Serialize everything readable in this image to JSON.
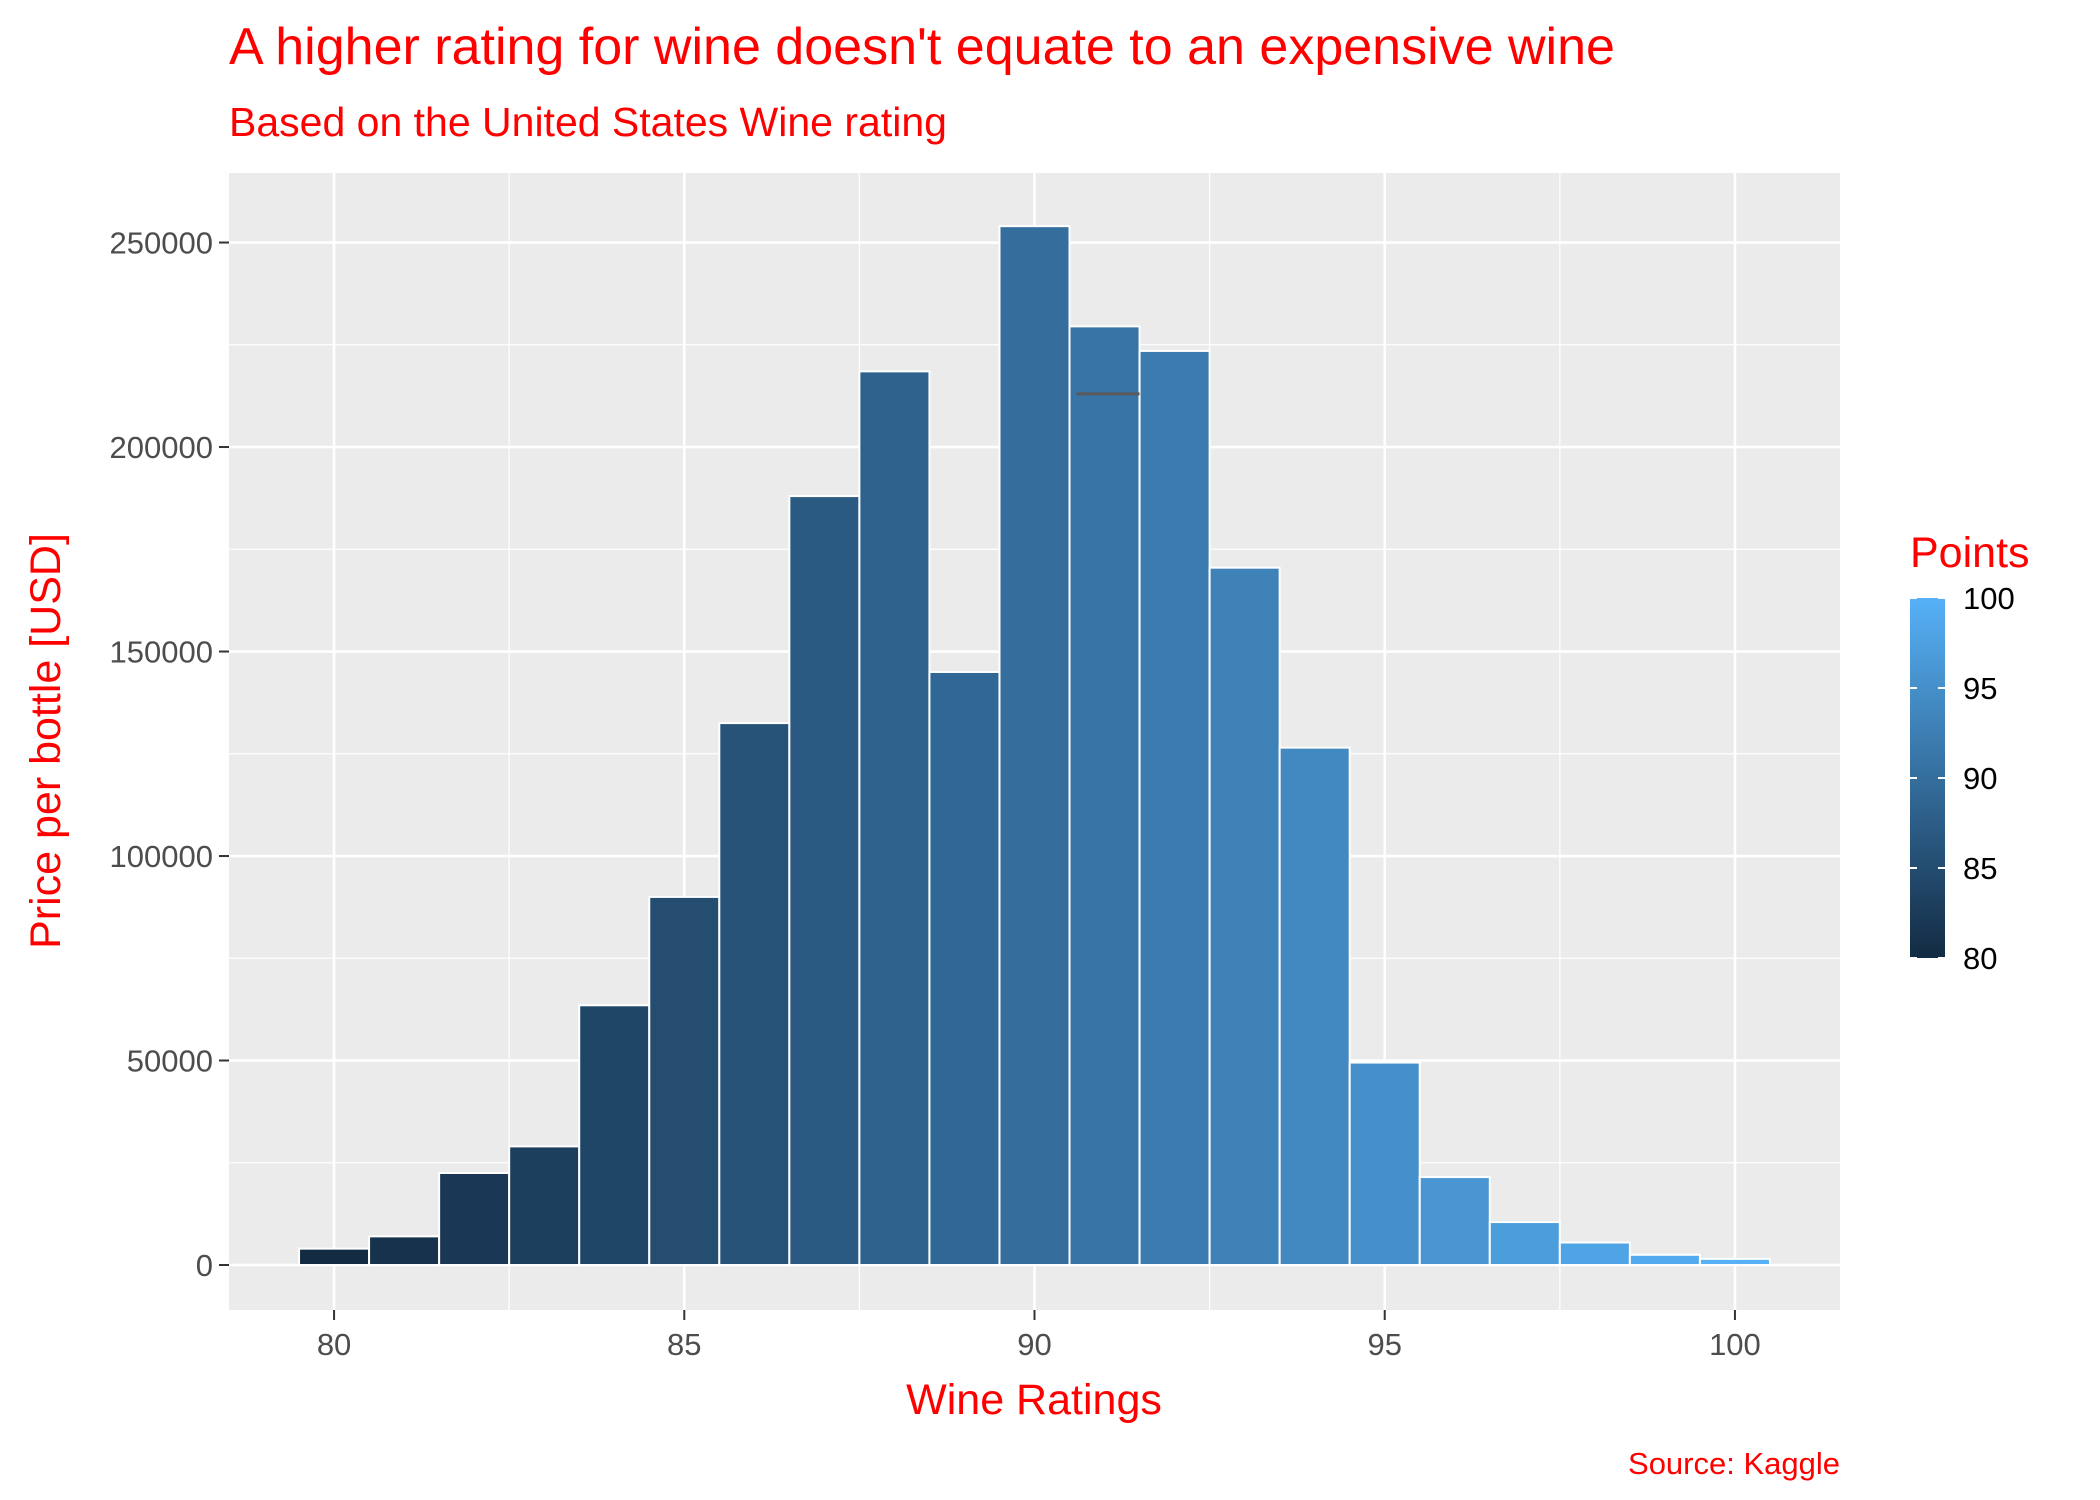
{
  "chart_data": {
    "type": "bar",
    "title": "A higher rating for wine doesn't equate to an expensive wine",
    "subtitle": "Based on the United States Wine rating",
    "xlabel": "Wine Ratings",
    "ylabel": "Price per bottle [USD]",
    "caption": "Source: Kaggle",
    "x": [
      80,
      81,
      82,
      83,
      84,
      85,
      86,
      87,
      88,
      89,
      90,
      91,
      92,
      93,
      94,
      95,
      96,
      97,
      98,
      99,
      100
    ],
    "values": [
      4000,
      7000,
      22500,
      29000,
      63500,
      90000,
      132500,
      188000,
      218500,
      145000,
      254000,
      229500,
      223500,
      170500,
      126500,
      49500,
      21500,
      10500,
      5500,
      2500,
      1500
    ],
    "xlim": [
      78.5,
      101.5
    ],
    "ylim": [
      -11000,
      267000
    ],
    "x_ticks": [
      80,
      85,
      90,
      95,
      100
    ],
    "x_tick_labels": [
      "80",
      "85",
      "90",
      "95",
      "100"
    ],
    "y_ticks": [
      0,
      50000,
      100000,
      150000,
      200000,
      250000
    ],
    "y_tick_labels": [
      "0",
      "50000",
      "100000",
      "150000",
      "200000",
      "250000"
    ],
    "grid": true,
    "legend": {
      "title": "Points",
      "placement": "right",
      "type": "colorbar",
      "range": [
        80,
        100
      ],
      "ticks": [
        80,
        85,
        90,
        95,
        100
      ],
      "tick_labels": [
        "80",
        "85",
        "90",
        "95",
        "100"
      ],
      "low_color": "#132B43",
      "high_color": "#56B1F7"
    },
    "annotation_segment": {
      "x": [
        90.6,
        91.5
      ],
      "y": 213000
    }
  }
}
